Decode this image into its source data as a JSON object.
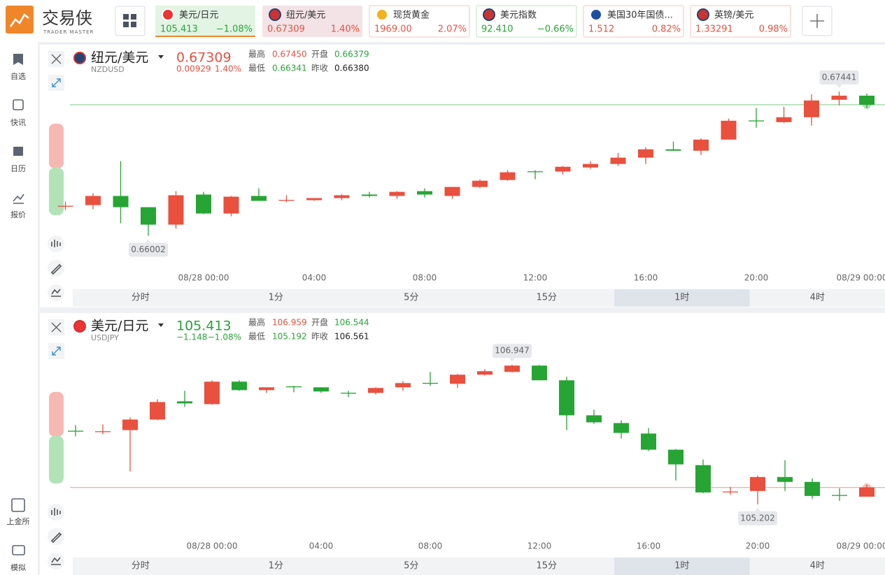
{
  "header": {
    "logo": "交易侠",
    "logo_sub": "TRADER MASTER"
  },
  "tickers": [
    {
      "name": "美元/日元",
      "price": "105.413",
      "change": "−1.08%"
    },
    {
      "name": "纽元/美元",
      "price": "0.67309",
      "change": "1.40%"
    },
    {
      "name": "现货黄金",
      "price": "1969.00",
      "change": "2.07%"
    },
    {
      "name": "美元指数",
      "price": "92.410",
      "change": "−0.66%"
    },
    {
      "name": "美国30年国债...",
      "price": "1.512",
      "change": "0.82%"
    },
    {
      "name": "英镑/美元",
      "price": "1.33291",
      "change": "0.98%"
    }
  ],
  "sidebar": {
    "top": [
      "自选",
      "快讯",
      "日历",
      "报价"
    ],
    "bottom": [
      "上金所",
      "模拟"
    ]
  },
  "panels": [
    {
      "name": "纽元/美元",
      "code": "NZDUSD",
      "price": "0.67309",
      "change": "0.00929",
      "change_pct": "1.40%",
      "stats": [
        {
          "label": "最高",
          "value": "0.67450"
        },
        {
          "label": "开盘",
          "value": "0.66379"
        },
        {
          "label": "最低",
          "value": "0.66341"
        },
        {
          "label": "昨收",
          "value": "0.66380"
        }
      ],
      "chart_data": {
        "type": "candlestick",
        "categories": [
          null,
          null,
          null,
          null,
          null,
          "08/28 00:00",
          null,
          null,
          null,
          "04:00",
          null,
          null,
          null,
          "08:00",
          null,
          null,
          null,
          "12:00",
          null,
          null,
          null,
          "16:00",
          null,
          null,
          null,
          "20:00",
          null,
          null,
          null,
          "08/29 00:00"
        ],
        "open": [
          0.66301,
          0.66308,
          0.66399,
          0.66287,
          0.66113,
          0.66413,
          0.66224,
          0.66399,
          0.66357,
          0.66357,
          0.66378,
          0.66413,
          0.66399,
          0.66447,
          0.66399,
          0.66489,
          0.66558,
          0.66645,
          0.66642,
          0.66683,
          0.66718,
          0.66781,
          0.66864,
          0.6685,
          0.66961,
          0.67152,
          0.67135,
          0.67184,
          0.67358,
          0.67399
        ],
        "high": [
          0.66343,
          0.66426,
          0.66746,
          0.66287,
          0.66447,
          0.6644,
          0.66399,
          0.66475,
          0.66406,
          0.66378,
          0.66419,
          0.6644,
          0.66447,
          0.66475,
          0.66489,
          0.66565,
          0.66656,
          0.66656,
          0.66697,
          0.66746,
          0.66829,
          0.66885,
          0.66941,
          0.66975,
          0.6717,
          0.67274,
          0.67288,
          0.67413,
          0.67441,
          0.6742
        ],
        "low": [
          0.66259,
          0.66266,
          0.66127,
          0.66002,
          0.66072,
          0.66218,
          0.66197,
          0.6635,
          0.66336,
          0.6635,
          0.66357,
          0.66385,
          0.66371,
          0.66385,
          0.66371,
          0.66475,
          0.66551,
          0.66565,
          0.66614,
          0.6667,
          0.66697,
          0.66718,
          0.6685,
          0.66808,
          0.66961,
          0.6708,
          0.67128,
          0.671,
          0.67302,
          0.67274
        ],
        "close": [
          0.66301,
          0.66399,
          0.66287,
          0.66113,
          0.66406,
          0.66224,
          0.66392,
          0.6635,
          0.6636,
          0.66378,
          0.66406,
          0.66399,
          0.6644,
          0.66413,
          0.66489,
          0.66551,
          0.66635,
          0.66642,
          0.6669,
          0.66718,
          0.66781,
          0.66864,
          0.6685,
          0.66961,
          0.67149,
          0.67149,
          0.67184,
          0.67351,
          0.67399,
          0.67309
        ],
        "ylim": [
          0.6565,
          0.679
        ],
        "max_label": 0.67441,
        "min_label": 0.66002,
        "up_color": "#e9503e",
        "down_color": "#26a534"
      },
      "tabs": [
        "分时",
        "1分",
        "5分",
        "15分",
        "1时",
        "4时"
      ],
      "active_tab": 4
    },
    {
      "name": "美元/日元",
      "code": "USDJPY",
      "price": "105.413",
      "change": "−1.148",
      "change_pct": "−1.08%",
      "stats": [
        {
          "label": "最高",
          "value": "106.959"
        },
        {
          "label": "开盘",
          "value": "106.544"
        },
        {
          "label": "最低",
          "value": "105.192"
        },
        {
          "label": "昨收",
          "value": "106.561"
        }
      ],
      "chart_data": {
        "type": "candlestick",
        "categories": [
          null,
          null,
          null,
          null,
          null,
          "08/28 00:00",
          null,
          null,
          null,
          "04:00",
          null,
          null,
          null,
          "08:00",
          null,
          null,
          null,
          "12:00",
          null,
          null,
          null,
          "16:00",
          null,
          null,
          null,
          "20:00",
          null,
          null,
          null,
          "08/29 00:00"
        ],
        "open": [
          106.123,
          106.114,
          106.131,
          106.263,
          106.491,
          106.456,
          106.737,
          106.631,
          106.678,
          106.666,
          106.598,
          106.596,
          106.666,
          106.722,
          106.71,
          106.824,
          106.859,
          106.938,
          106.754,
          106.316,
          106.219,
          106.088,
          105.886,
          105.693,
          105.36,
          105.369,
          105.544,
          105.483,
          105.319,
          105.298
        ],
        "high": [
          106.193,
          106.202,
          106.289,
          106.517,
          106.623,
          106.754,
          106.754,
          106.666,
          106.684,
          106.666,
          106.623,
          106.666,
          106.745,
          106.859,
          106.833,
          106.894,
          106.947,
          106.947,
          106.798,
          106.386,
          106.254,
          106.158,
          105.895,
          105.763,
          105.421,
          105.562,
          105.754,
          105.526,
          105.404,
          105.448
        ],
        "low": [
          106.053,
          106.079,
          105.614,
          106.254,
          106.421,
          106.447,
          106.623,
          106.596,
          106.605,
          106.596,
          106.544,
          106.579,
          106.623,
          106.684,
          106.658,
          106.815,
          106.851,
          106.754,
          106.131,
          106.21,
          106.026,
          105.868,
          105.5,
          105.342,
          105.325,
          105.202,
          105.369,
          105.272,
          105.246,
          105.298
        ],
        "close": [
          106.12,
          106.117,
          106.263,
          106.482,
          106.465,
          106.737,
          106.631,
          106.666,
          106.675,
          106.614,
          106.596,
          106.658,
          106.719,
          106.719,
          106.824,
          106.868,
          106.938,
          106.754,
          106.316,
          106.228,
          106.096,
          105.886,
          105.702,
          105.351,
          105.363,
          105.544,
          105.483,
          105.307,
          105.316,
          105.413
        ],
        "ylim": [
          104.764,
          107.587
        ],
        "max_label": 106.947,
        "min_label": 105.202,
        "up_color": "#e9503e",
        "down_color": "#26a534"
      },
      "tabs": [
        "分时",
        "1分",
        "5分",
        "15分",
        "1时",
        "4时"
      ],
      "active_tab": 4
    }
  ]
}
